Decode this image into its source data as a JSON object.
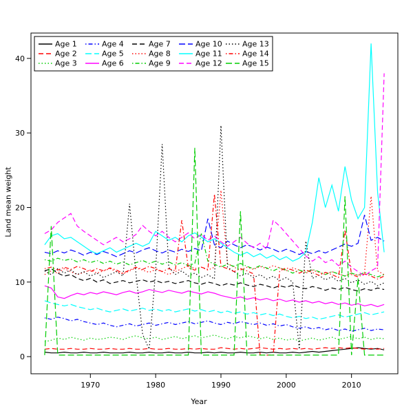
{
  "figure": {
    "xlabel": "Year",
    "ylabel": "Land mean weight"
  },
  "chart_data": {
    "type": "line",
    "title": "",
    "xlabel": "Year",
    "ylabel": "Land mean weight",
    "legend_position": "top-left-inside",
    "legend_columns": 5,
    "grid": false,
    "x_ticks": [
      1970,
      1980,
      1990,
      2000,
      2010
    ],
    "y_ticks": [
      0,
      10,
      20,
      30,
      40
    ],
    "xlim": [
      1960.9,
      2017.1
    ],
    "ylim": [
      -2.3,
      43.4
    ],
    "x": [
      1963,
      1964,
      1965,
      1966,
      1967,
      1968,
      1969,
      1970,
      1971,
      1972,
      1973,
      1974,
      1975,
      1976,
      1977,
      1978,
      1979,
      1980,
      1981,
      1982,
      1983,
      1984,
      1985,
      1986,
      1987,
      1988,
      1989,
      1990,
      1991,
      1992,
      1993,
      1994,
      1995,
      1996,
      1997,
      1998,
      1999,
      2000,
      2001,
      2002,
      2003,
      2004,
      2005,
      2006,
      2007,
      2008,
      2009,
      2010,
      2011,
      2012,
      2013,
      2014,
      2015
    ],
    "series": [
      {
        "name": "Age 1",
        "color": "#000000",
        "linetype": "solid",
        "values": [
          0.6,
          0.5,
          0.5,
          0.6,
          0.5,
          0.5,
          0.6,
          0.5,
          0.5,
          0.6,
          0.5,
          0.5,
          0.5,
          0.6,
          0.5,
          0.5,
          0.6,
          0.5,
          0.5,
          0.6,
          0.5,
          0.5,
          0.6,
          0.5,
          0.5,
          0.6,
          0.5,
          0.6,
          0.5,
          0.5,
          0.6,
          0.5,
          0.5,
          0.6,
          0.5,
          0.6,
          0.5,
          0.5,
          0.6,
          0.5,
          0.6,
          0.7,
          0.6,
          0.7,
          0.8,
          0.9,
          1.0,
          1.1,
          1.2,
          1.1,
          1.0,
          1.1,
          0.9
        ]
      },
      {
        "name": "Age 2",
        "color": "#FF0000",
        "linetype": "dashed",
        "values": [
          1.0,
          1.1,
          1.0,
          1.0,
          1.1,
          1.0,
          1.0,
          1.1,
          1.0,
          1.0,
          1.1,
          1.0,
          1.0,
          1.1,
          1.0,
          1.0,
          1.1,
          1.0,
          1.0,
          1.1,
          1.0,
          1.0,
          1.1,
          1.0,
          1.1,
          1.0,
          1.0,
          1.2,
          1.1,
          1.0,
          1.1,
          1.0,
          1.1,
          1.2,
          1.1,
          1.0,
          1.1,
          1.0,
          1.1,
          1.0,
          1.1,
          1.0,
          1.1,
          1.2,
          1.1,
          1.2,
          1.1,
          1.2,
          1.1,
          1.0,
          1.1,
          1.0,
          1.1
        ]
      },
      {
        "name": "Age 3",
        "color": "#00CD00",
        "linetype": "dotted",
        "values": [
          2.0,
          2.2,
          2.5,
          2.3,
          2.6,
          2.4,
          2.2,
          2.5,
          2.3,
          2.4,
          2.6,
          2.5,
          2.3,
          2.6,
          2.8,
          2.5,
          2.4,
          2.6,
          2.3,
          2.5,
          2.7,
          2.4,
          2.6,
          2.8,
          2.5,
          2.7,
          2.9,
          2.6,
          2.4,
          2.7,
          2.5,
          2.8,
          2.6,
          2.4,
          2.6,
          2.3,
          2.5,
          2.2,
          2.4,
          2.1,
          2.3,
          2.5,
          2.2,
          2.4,
          2.6,
          2.3,
          2.5,
          2.7,
          2.4,
          2.6,
          2.3,
          2.5,
          2.4
        ]
      },
      {
        "name": "Age 4",
        "color": "#0000FF",
        "linetype": "dotdash",
        "values": [
          5.2,
          5.0,
          5.3,
          5.1,
          4.8,
          5.0,
          4.7,
          4.5,
          4.3,
          4.5,
          4.2,
          4.0,
          4.2,
          4.4,
          4.1,
          4.3,
          4.5,
          4.2,
          4.4,
          4.6,
          4.3,
          4.5,
          4.7,
          4.4,
          4.6,
          4.8,
          4.5,
          4.3,
          4.6,
          4.4,
          4.7,
          4.5,
          4.3,
          4.5,
          4.2,
          4.4,
          4.1,
          4.3,
          4.0,
          3.8,
          4.0,
          3.7,
          3.9,
          3.6,
          3.8,
          3.5,
          3.7,
          3.4,
          3.6,
          3.8,
          3.5,
          3.7,
          3.6
        ]
      },
      {
        "name": "Age 5",
        "color": "#00FFFF",
        "linetype": "longdash",
        "values": [
          7.5,
          7.2,
          7.0,
          6.8,
          7.0,
          6.7,
          6.5,
          6.3,
          6.5,
          6.2,
          6.0,
          6.2,
          6.4,
          6.1,
          6.3,
          6.5,
          6.2,
          6.4,
          6.1,
          6.3,
          6.0,
          6.2,
          6.4,
          6.1,
          6.3,
          6.0,
          6.2,
          5.9,
          6.1,
          5.8,
          6.0,
          5.7,
          5.9,
          5.6,
          5.8,
          5.5,
          5.7,
          5.4,
          5.2,
          5.4,
          5.1,
          5.3,
          5.0,
          5.2,
          5.4,
          5.6,
          5.3,
          5.5,
          5.7,
          5.9,
          5.6,
          5.8,
          6.0
        ]
      },
      {
        "name": "Age 6",
        "color": "#FF00FF",
        "linetype": "solid",
        "values": [
          9.5,
          9.2,
          8.0,
          7.8,
          8.2,
          8.5,
          8.3,
          8.6,
          8.4,
          8.7,
          8.5,
          8.3,
          8.6,
          8.8,
          8.5,
          8.7,
          9.0,
          8.8,
          8.6,
          8.9,
          8.7,
          8.5,
          8.8,
          8.6,
          8.4,
          8.7,
          8.5,
          8.2,
          8.0,
          7.8,
          8.0,
          7.7,
          7.9,
          7.6,
          7.8,
          7.5,
          7.7,
          7.4,
          7.6,
          7.3,
          7.5,
          7.2,
          7.4,
          7.1,
          7.3,
          7.0,
          7.2,
          6.9,
          7.1,
          6.8,
          7.0,
          6.7,
          7.0
        ]
      },
      {
        "name": "Age 7",
        "color": "#000000",
        "linetype": "dashed",
        "values": [
          11.5,
          11.8,
          11.2,
          10.8,
          11.0,
          10.5,
          10.2,
          10.5,
          10.0,
          10.3,
          9.8,
          10.0,
          10.2,
          9.9,
          10.1,
          10.3,
          10.0,
          10.2,
          9.9,
          10.1,
          9.8,
          10.0,
          10.2,
          9.9,
          9.7,
          10.0,
          9.8,
          9.5,
          9.8,
          9.6,
          9.9,
          9.6,
          9.4,
          9.7,
          9.5,
          9.2,
          9.5,
          9.3,
          9.6,
          9.3,
          9.1,
          9.4,
          9.2,
          8.9,
          9.2,
          9.0,
          9.3,
          9.0,
          8.8,
          9.1,
          8.9,
          9.2,
          9.0
        ]
      },
      {
        "name": "Age 8",
        "color": "#FF0000",
        "linetype": "dotted",
        "values": [
          11.0,
          11.5,
          11.2,
          11.8,
          11.4,
          11.0,
          11.3,
          11.6,
          11.2,
          11.5,
          11.8,
          11.4,
          11.1,
          11.5,
          11.9,
          11.6,
          11.3,
          11.7,
          11.4,
          11.0,
          11.4,
          11.8,
          12.2,
          11.8,
          12.0,
          11.6,
          12.0,
          22.3,
          12.5,
          12.0,
          11.6,
          12.0,
          11.7,
          12.1,
          11.8,
          12.2,
          11.9,
          11.5,
          11.9,
          11.6,
          11.2,
          11.6,
          11.3,
          11.0,
          11.4,
          11.1,
          10.8,
          11.2,
          10.9,
          11.3,
          21.5,
          11.5,
          11.0
        ]
      },
      {
        "name": "Age 9",
        "color": "#00CD00",
        "linetype": "dotdash",
        "values": [
          13.0,
          12.8,
          13.2,
          12.9,
          13.1,
          12.7,
          13.0,
          12.6,
          12.9,
          12.5,
          12.8,
          12.4,
          12.7,
          12.3,
          12.6,
          12.9,
          12.5,
          12.8,
          12.4,
          12.7,
          12.3,
          12.6,
          12.2,
          12.5,
          16.5,
          12.8,
          12.4,
          12.0,
          12.4,
          12.1,
          12.5,
          12.1,
          11.8,
          12.2,
          11.9,
          11.5,
          11.9,
          11.6,
          11.2,
          11.6,
          11.3,
          11.7,
          11.4,
          11.0,
          11.4,
          11.1,
          10.8,
          11.2,
          10.9,
          11.3,
          11.0,
          10.7,
          11.0
        ]
      },
      {
        "name": "Age 10",
        "color": "#0000FF",
        "linetype": "longdash",
        "values": [
          14.0,
          13.8,
          14.2,
          13.9,
          14.3,
          14.0,
          13.6,
          14.0,
          13.7,
          14.1,
          13.8,
          13.4,
          13.8,
          14.2,
          13.9,
          14.3,
          14.6,
          14.2,
          13.9,
          14.3,
          14.0,
          14.4,
          14.1,
          14.5,
          14.2,
          18.5,
          15.0,
          14.6,
          15.5,
          15.0,
          14.6,
          15.0,
          14.7,
          14.3,
          14.7,
          14.4,
          14.0,
          14.4,
          14.1,
          13.7,
          14.1,
          13.8,
          14.2,
          13.9,
          14.3,
          14.7,
          15.1,
          14.8,
          15.2,
          19.0,
          15.6,
          16.0,
          15.5
        ]
      },
      {
        "name": "Age 11",
        "color": "#00FFFF",
        "linetype": "solid",
        "values": [
          15.0,
          16.2,
          16.5,
          15.8,
          16.0,
          15.4,
          14.8,
          14.2,
          13.8,
          14.2,
          14.6,
          14.0,
          14.4,
          14.8,
          15.2,
          14.8,
          15.2,
          16.8,
          16.2,
          15.6,
          16.0,
          15.4,
          16.2,
          16.6,
          16.0,
          15.4,
          15.8,
          15.2,
          14.6,
          14.0,
          13.6,
          14.0,
          13.4,
          13.8,
          13.2,
          13.6,
          13.0,
          13.4,
          12.8,
          13.2,
          14.0,
          18.0,
          24.0,
          20.0,
          23.0,
          19.5,
          25.5,
          21.0,
          18.5,
          20.0,
          42.0,
          22.0,
          14.0
        ]
      },
      {
        "name": "Age 12",
        "color": "#FF00FF",
        "linetype": "dashed",
        "values": [
          16.5,
          17.0,
          18.0,
          18.6,
          19.2,
          17.5,
          16.8,
          16.2,
          15.6,
          15.0,
          15.5,
          16.0,
          15.4,
          15.8,
          16.4,
          17.6,
          16.8,
          16.2,
          16.8,
          16.0,
          15.4,
          16.0,
          16.6,
          15.8,
          16.4,
          15.6,
          16.2,
          15.4,
          14.8,
          15.4,
          16.0,
          15.2,
          14.6,
          15.2,
          14.4,
          18.3,
          17.5,
          16.5,
          15.5,
          14.5,
          13.5,
          12.8,
          13.4,
          12.6,
          13.0,
          12.2,
          12.8,
          12.0,
          11.4,
          10.8,
          11.5,
          12.0,
          38.0
        ]
      },
      {
        "name": "Age 13",
        "color": "#000000",
        "linetype": "dotted",
        "values": [
          11.5,
          11.0,
          11.8,
          11.2,
          11.6,
          11.0,
          11.4,
          10.8,
          11.2,
          10.6,
          11.0,
          11.4,
          10.8,
          20.5,
          11.0,
          3.0,
          1.0,
          11.5,
          28.5,
          12.0,
          11.0,
          11.5,
          10.8,
          11.2,
          10.6,
          11.0,
          10.4,
          31.0,
          12.0,
          11.4,
          10.8,
          11.2,
          10.6,
          11.0,
          10.4,
          10.8,
          10.2,
          10.6,
          10.0,
          1.0,
          15.5,
          10.5,
          10.9,
          10.3,
          10.7,
          10.1,
          10.5,
          9.9,
          10.3,
          9.7,
          10.1,
          9.5,
          9.9
        ]
      },
      {
        "name": "Age 14",
        "color": "#FF0000",
        "linetype": "dotdash",
        "values": [
          11.8,
          12.0,
          11.6,
          12.0,
          11.7,
          12.1,
          11.8,
          11.4,
          11.8,
          11.5,
          11.9,
          11.6,
          11.2,
          11.6,
          12.0,
          11.7,
          12.1,
          11.8,
          11.4,
          11.8,
          11.5,
          18.3,
          11.9,
          11.6,
          12.0,
          11.7,
          21.8,
          12.1,
          11.8,
          11.4,
          11.8,
          11.5,
          11.1,
          0.2,
          0.2,
          0.2,
          11.5,
          11.9,
          11.6,
          11.2,
          11.6,
          11.3,
          10.9,
          11.3,
          11.0,
          10.6,
          17.0,
          11.0,
          10.7,
          11.1,
          10.8,
          10.4,
          10.8
        ]
      },
      {
        "name": "Age 15",
        "color": "#00CD00",
        "linetype": "longdash",
        "values": [
          0.2,
          17.5,
          0.2,
          0.2,
          0.2,
          0.2,
          0.2,
          0.2,
          0.2,
          0.2,
          0.2,
          0.2,
          0.2,
          0.2,
          0.2,
          0.2,
          0.2,
          0.2,
          0.2,
          0.2,
          0.2,
          0.2,
          0.2,
          28.0,
          0.2,
          0.2,
          0.2,
          0.2,
          0.2,
          0.2,
          19.5,
          0.2,
          0.2,
          0.2,
          0.2,
          0.2,
          0.2,
          0.2,
          0.2,
          0.2,
          0.2,
          0.2,
          0.2,
          0.2,
          0.2,
          0.2,
          21.5,
          0.2,
          10.5,
          0.2,
          0.2,
          0.2,
          0.2
        ]
      }
    ]
  }
}
